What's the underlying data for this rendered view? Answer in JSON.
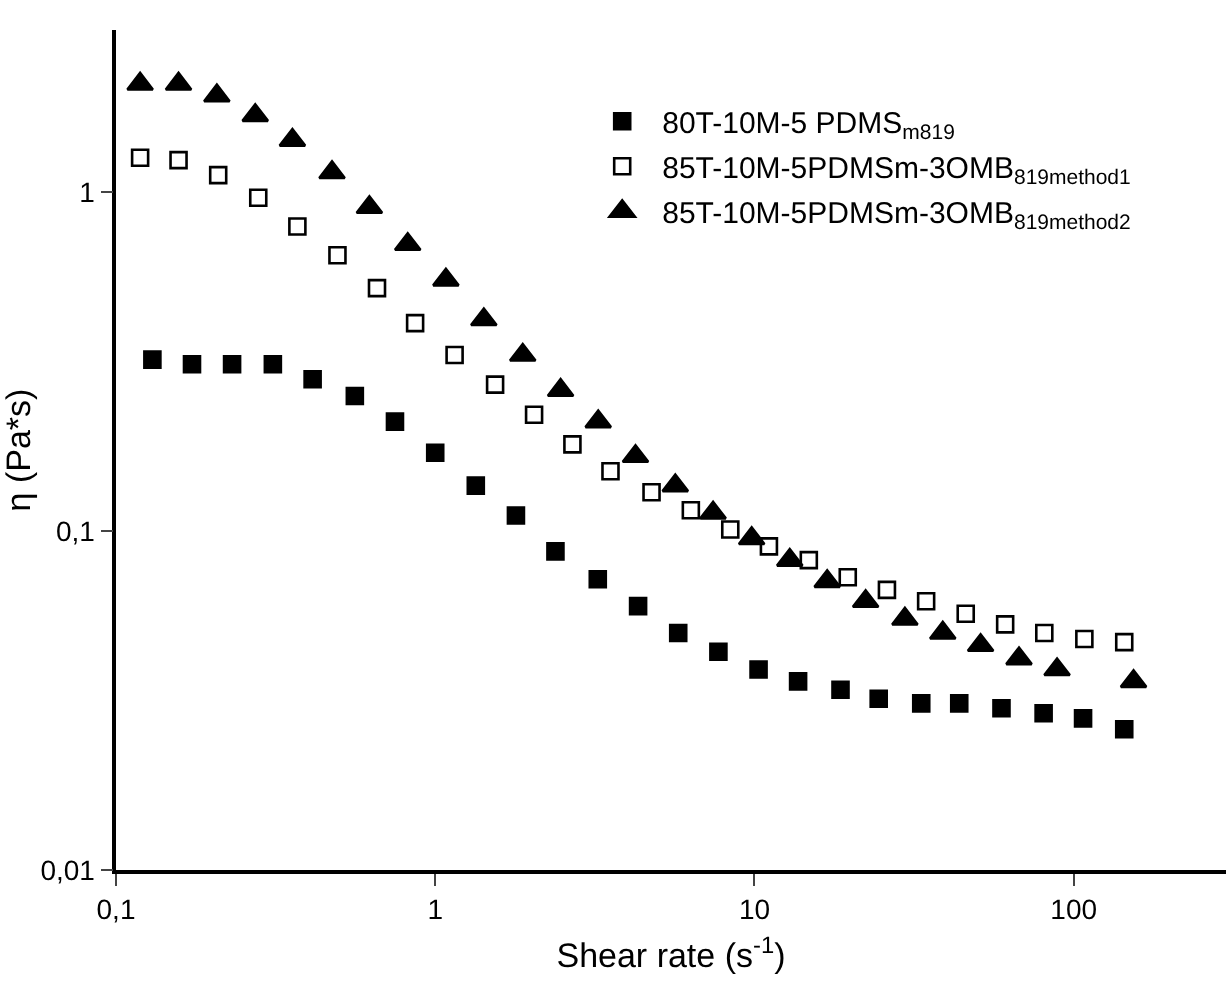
{
  "chart_data": {
    "type": "scatter",
    "xlabel": "Shear rate (s$^{-1}$)",
    "ylabel": "η (Pa*s)",
    "log": "xy",
    "grid": false,
    "legend": "top right",
    "xlim": [
      0.1,
      300
    ],
    "ylim": [
      0.01,
      3
    ],
    "xticks": [
      {
        "value": 0.1,
        "label": "0,1"
      },
      1,
      10,
      100
    ],
    "yticks": [
      {
        "value": 0.01,
        "label": "0,01"
      },
      {
        "value": 0.1,
        "label": "0,1"
      },
      1
    ],
    "series": [
      {
        "name": "80T-10M-5 PDMS$_{m819}$",
        "color": "#000000",
        "marker": "square",
        "x": [
          0.13,
          0.173,
          0.231,
          0.31,
          0.413,
          0.56,
          0.748,
          1.0,
          1.34,
          1.79,
          2.38,
          3.23,
          4.32,
          5.77,
          7.71,
          10.3,
          13.7,
          18.6,
          24.5,
          33.3,
          43.8,
          59.4,
          80.5,
          107,
          144
        ],
        "values": [
          0.32,
          0.31,
          0.31,
          0.31,
          0.28,
          0.25,
          0.21,
          0.17,
          0.136,
          0.111,
          0.087,
          0.072,
          0.06,
          0.05,
          0.044,
          0.039,
          0.036,
          0.034,
          0.032,
          0.031,
          0.031,
          0.03,
          0.029,
          0.028,
          0.026
        ]
      },
      {
        "name": "85T-10M-5PDMSm-3OMB$_{819method1}$",
        "color": "#000000",
        "marker": "square-open",
        "x": [
          0.119,
          0.157,
          0.209,
          0.279,
          0.37,
          0.494,
          0.657,
          0.865,
          1.15,
          1.54,
          2.04,
          2.69,
          3.54,
          4.76,
          6.32,
          8.4,
          11.1,
          14.8,
          19.6,
          26,
          34.5,
          45.9,
          61,
          80.9,
          108,
          144
        ],
        "values": [
          1.26,
          1.24,
          1.12,
          0.96,
          0.79,
          0.65,
          0.52,
          0.41,
          0.33,
          0.27,
          0.22,
          0.18,
          0.15,
          0.13,
          0.115,
          0.101,
          0.09,
          0.082,
          0.073,
          0.067,
          0.062,
          0.057,
          0.053,
          0.05,
          0.048,
          0.047
        ]
      },
      {
        "name": "85T-10M-5PDMSm-3OMB$_{819method2}$",
        "color": "#000000",
        "marker": "triangle",
        "x": [
          0.119,
          0.157,
          0.207,
          0.273,
          0.357,
          0.475,
          0.622,
          0.82,
          1.08,
          1.42,
          1.88,
          2.47,
          3.24,
          4.24,
          5.65,
          7.42,
          9.8,
          12.9,
          16.9,
          22.3,
          29.6,
          38.9,
          51.1,
          67.4,
          88.7,
          154
        ],
        "values": [
          2.08,
          2.08,
          1.92,
          1.68,
          1.42,
          1.14,
          0.9,
          0.7,
          0.55,
          0.42,
          0.33,
          0.26,
          0.21,
          0.166,
          0.136,
          0.113,
          0.095,
          0.082,
          0.071,
          0.062,
          0.055,
          0.05,
          0.046,
          0.042,
          0.039,
          0.036
        ]
      }
    ]
  }
}
